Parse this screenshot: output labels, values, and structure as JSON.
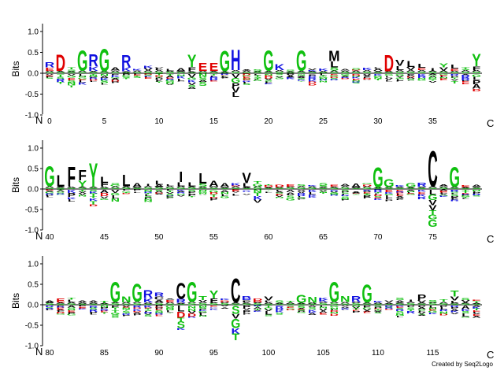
{
  "chart_data": {
    "type": "sequence_logo",
    "ylabel": "Bits",
    "ylim": [
      -1,
      1.3
    ],
    "yticks": [
      -1.0,
      -0.5,
      0.0,
      0.5,
      1.0
    ],
    "n_label": "N",
    "c_label": "C",
    "credit": "Created by Seq2Logo",
    "colors": {
      "acidic": "#e00000",
      "basic": "#1010e0",
      "hydrophobic": "#000000",
      "polar": "#10c010",
      "neutral": "#a000a0"
    },
    "rows": [
      {
        "start": 0,
        "ticks": [
          0,
          5,
          10,
          15,
          20,
          25,
          30,
          35
        ],
        "peaks": [
          {
            "pos": 0,
            "letters": [
              [
                "R",
                0.12
              ],
              [
                "E",
                0.08
              ]
            ]
          },
          {
            "pos": 1,
            "letters": [
              [
                "D",
                0.4
              ]
            ]
          },
          {
            "pos": 3,
            "letters": [
              [
                "G",
                0.5
              ]
            ]
          },
          {
            "pos": 4,
            "letters": [
              [
                "R",
                0.3
              ],
              [
                "K",
                0.1
              ]
            ]
          },
          {
            "pos": 5,
            "letters": [
              [
                "G",
                0.55
              ]
            ]
          },
          {
            "pos": 7,
            "letters": [
              [
                "R",
                0.3
              ],
              [
                "K",
                0.1
              ]
            ]
          },
          {
            "pos": 13,
            "letters": [
              [
                "Y",
                0.3
              ],
              [
                "F",
                0.1
              ]
            ]
          },
          {
            "pos": 14,
            "letters": [
              [
                "E",
                0.2
              ]
            ]
          },
          {
            "pos": 15,
            "letters": [
              [
                "E",
                0.2
              ]
            ]
          },
          {
            "pos": 16,
            "letters": [
              [
                "G",
                0.5
              ]
            ]
          },
          {
            "pos": 17,
            "letters": [
              [
                "H",
                0.5
              ]
            ]
          },
          {
            "pos": 20,
            "letters": [
              [
                "G",
                0.5
              ]
            ]
          },
          {
            "pos": 21,
            "letters": [
              [
                "K",
                0.15
              ]
            ]
          },
          {
            "pos": 23,
            "letters": [
              [
                "G",
                0.5
              ]
            ]
          },
          {
            "pos": 26,
            "letters": [
              [
                "M",
                0.25
              ],
              [
                "L",
                0.15
              ],
              [
                "S",
                0.08
              ]
            ]
          },
          {
            "pos": 31,
            "letters": [
              [
                "D",
                0.4
              ]
            ]
          },
          {
            "pos": 32,
            "letters": [
              [
                "V",
                0.15
              ],
              [
                "L",
                0.1
              ]
            ]
          },
          {
            "pos": 33,
            "letters": [
              [
                "L",
                0.15
              ],
              [
                "V",
                0.08
              ]
            ]
          },
          {
            "pos": 34,
            "letters": [
              [
                "L",
                0.1
              ],
              [
                "E",
                0.05
              ]
            ]
          },
          {
            "pos": 36,
            "letters": [
              [
                "Y",
                0.1
              ],
              [
                "V",
                0.08
              ]
            ]
          },
          {
            "pos": 37,
            "letters": [
              [
                "L",
                0.1
              ],
              [
                "E",
                0.05
              ]
            ]
          },
          {
            "pos": 39,
            "letters": [
              [
                "Y",
                0.3
              ],
              [
                "F",
                0.1
              ]
            ]
          }
        ],
        "dips": [
          {
            "pos": 17,
            "depth": 0.55
          },
          {
            "pos": 13,
            "depth": 0.4
          },
          {
            "pos": 39,
            "depth": 0.45
          },
          {
            "pos": 3,
            "depth": 0.25
          },
          {
            "pos": 5,
            "depth": 0.25
          }
        ]
      },
      {
        "start": 40,
        "ticks": [
          40,
          45,
          50,
          55,
          60,
          65,
          70,
          75
        ],
        "peaks": [
          {
            "pos": 40,
            "letters": [
              [
                "G",
                0.5
              ]
            ]
          },
          {
            "pos": 41,
            "letters": [
              [
                "L",
                0.3
              ]
            ]
          },
          {
            "pos": 42,
            "letters": [
              [
                "F",
                0.5
              ]
            ]
          },
          {
            "pos": 43,
            "letters": [
              [
                "Y",
                0.15
              ],
              [
                "F",
                0.25
              ]
            ]
          },
          {
            "pos": 44,
            "letters": [
              [
                "Y",
                0.6
              ]
            ]
          },
          {
            "pos": 45,
            "letters": [
              [
                "L",
                0.15
              ],
              [
                "F",
                0.1
              ]
            ]
          },
          {
            "pos": 47,
            "letters": [
              [
                "L",
                0.3
              ]
            ]
          },
          {
            "pos": 48,
            "letters": [
              [
                "A",
                0.1
              ]
            ]
          },
          {
            "pos": 50,
            "letters": [
              [
                "L",
                0.1
              ],
              [
                "A",
                0.05
              ]
            ]
          },
          {
            "pos": 52,
            "letters": [
              [
                "I",
                0.25
              ],
              [
                "L",
                0.1
              ]
            ]
          },
          {
            "pos": 53,
            "letters": [
              [
                "L",
                0.1
              ]
            ]
          },
          {
            "pos": 54,
            "letters": [
              [
                "L",
                0.25
              ],
              [
                "S",
                0.08
              ]
            ]
          },
          {
            "pos": 55,
            "letters": [
              [
                "A",
                0.15
              ]
            ]
          },
          {
            "pos": 56,
            "letters": [
              [
                "A",
                0.1
              ]
            ]
          },
          {
            "pos": 58,
            "letters": [
              [
                "V",
                0.25
              ],
              [
                "L",
                0.1
              ]
            ]
          },
          {
            "pos": 67,
            "letters": [
              [
                "A",
                0.05
              ]
            ]
          },
          {
            "pos": 68,
            "letters": [
              [
                "A",
                0.1
              ]
            ]
          },
          {
            "pos": 70,
            "letters": [
              [
                "G",
                0.5
              ]
            ]
          },
          {
            "pos": 71,
            "letters": [
              [
                "G",
                0.2
              ]
            ]
          },
          {
            "pos": 73,
            "letters": [
              [
                "G",
                0.1
              ]
            ]
          },
          {
            "pos": 74,
            "letters": [
              [
                "R",
                0.1
              ]
            ]
          },
          {
            "pos": 75,
            "letters": [
              [
                "C",
                0.9
              ]
            ]
          },
          {
            "pos": 76,
            "letters": [
              [
                "A",
                0.05
              ]
            ]
          },
          {
            "pos": 77,
            "letters": [
              [
                "G",
                0.5
              ]
            ]
          },
          {
            "pos": 79,
            "letters": [
              [
                "A",
                0.05
              ]
            ]
          }
        ],
        "dips": [
          {
            "pos": 75,
            "depth": 0.95
          },
          {
            "pos": 44,
            "depth": 0.4
          },
          {
            "pos": 42,
            "depth": 0.3
          },
          {
            "pos": 70,
            "depth": 0.3
          },
          {
            "pos": 77,
            "depth": 0.3
          }
        ]
      },
      {
        "start": 80,
        "ticks": [
          80,
          85,
          90,
          95,
          100,
          105,
          110,
          115
        ],
        "peaks": [
          {
            "pos": 80,
            "letters": [
              [
                "A",
                0.05
              ]
            ]
          },
          {
            "pos": 81,
            "letters": [
              [
                "E",
                0.1
              ]
            ]
          },
          {
            "pos": 83,
            "letters": [
              [
                "A",
                0.05
              ]
            ]
          },
          {
            "pos": 84,
            "letters": [
              [
                "A",
                0.05
              ]
            ]
          },
          {
            "pos": 86,
            "letters": [
              [
                "G",
                0.5
              ]
            ]
          },
          {
            "pos": 87,
            "letters": [
              [
                "N",
                0.15
              ]
            ]
          },
          {
            "pos": 88,
            "letters": [
              [
                "G",
                0.45
              ]
            ]
          },
          {
            "pos": 89,
            "letters": [
              [
                "R",
                0.2
              ],
              [
                "K",
                0.1
              ]
            ]
          },
          {
            "pos": 90,
            "letters": [
              [
                "R",
                0.1
              ],
              [
                "C",
                0.08
              ],
              [
                "A",
                0.05
              ]
            ]
          },
          {
            "pos": 92,
            "letters": [
              [
                "C",
                0.4
              ],
              [
                "R",
                0.1
              ]
            ]
          },
          {
            "pos": 93,
            "letters": [
              [
                "G",
                0.5
              ]
            ]
          },
          {
            "pos": 94,
            "letters": [
              [
                "T",
                0.1
              ],
              [
                "V",
                0.05
              ]
            ]
          },
          {
            "pos": 95,
            "letters": [
              [
                "Y",
                0.2
              ],
              [
                "F",
                0.1
              ]
            ]
          },
          {
            "pos": 97,
            "letters": [
              [
                "C",
                0.6
              ]
            ]
          },
          {
            "pos": 98,
            "letters": [
              [
                "B",
                0.1
              ],
              [
                "P",
                0.05
              ]
            ]
          },
          {
            "pos": 100,
            "letters": [
              [
                "V",
                0.1
              ],
              [
                "L",
                0.05
              ]
            ]
          },
          {
            "pos": 103,
            "letters": [
              [
                "G",
                0.2
              ]
            ]
          },
          {
            "pos": 104,
            "letters": [
              [
                "N",
                0.15
              ]
            ]
          },
          {
            "pos": 106,
            "letters": [
              [
                "G",
                0.5
              ]
            ]
          },
          {
            "pos": 107,
            "letters": [
              [
                "N",
                0.15
              ]
            ]
          },
          {
            "pos": 108,
            "letters": [
              [
                "R",
                0.15
              ]
            ]
          },
          {
            "pos": 109,
            "letters": [
              [
                "G",
                0.45
              ]
            ]
          },
          {
            "pos": 114,
            "letters": [
              [
                "P",
                0.15
              ],
              [
                "V",
                0.05
              ]
            ]
          },
          {
            "pos": 117,
            "letters": [
              [
                "T",
                0.15
              ],
              [
                "V",
                0.1
              ],
              [
                "L",
                0.05
              ]
            ]
          }
        ],
        "dips": [
          {
            "pos": 97,
            "depth": 0.85
          },
          {
            "pos": 92,
            "depth": 0.6
          },
          {
            "pos": 86,
            "depth": 0.3
          },
          {
            "pos": 93,
            "depth": 0.3
          },
          {
            "pos": 106,
            "depth": 0.25
          }
        ]
      }
    ]
  }
}
